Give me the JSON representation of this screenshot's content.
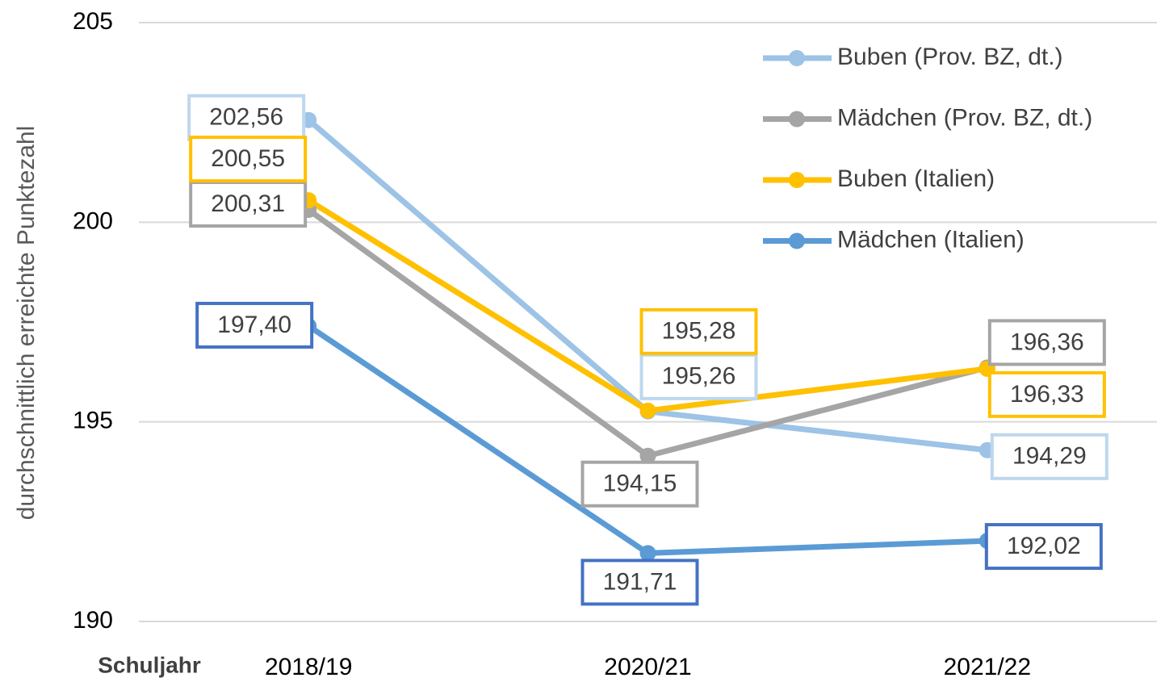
{
  "chart_data": {
    "type": "line",
    "y_label": "durchschnittlich erreichte Punktezahl",
    "x_label": "Schuljahr",
    "categories": [
      "2018/19",
      "2020/21",
      "2021/22"
    ],
    "series": [
      {
        "name": "Buben (Prov. BZ, dt.)",
        "color": "#9dc3e6",
        "label_border": "#bdd7ee",
        "values": [
          202.56,
          195.26,
          194.29
        ],
        "value_labels": [
          "202,56",
          "195,26",
          "194,29"
        ]
      },
      {
        "name": "Mädchen (Prov. BZ, dt.)",
        "color": "#a5a5a5",
        "label_border": "#a5a5a5",
        "values": [
          200.31,
          194.15,
          196.36
        ],
        "value_labels": [
          "200,31",
          "194,15",
          "196,36"
        ]
      },
      {
        "name": "Buben (Italien)",
        "color": "#ffc000",
        "label_border": "#ffc000",
        "values": [
          200.55,
          195.28,
          196.33
        ],
        "value_labels": [
          "200,55",
          "195,28",
          "196,33"
        ]
      },
      {
        "name": "Mädchen (Italien)",
        "color": "#5b9bd5",
        "label_border": "#4472c4",
        "values": [
          197.4,
          191.71,
          192.02
        ],
        "value_labels": [
          "197,40",
          "191,71",
          "192,02"
        ]
      }
    ],
    "ylim": [
      190,
      205
    ],
    "yticks": [
      190,
      195,
      200,
      205
    ],
    "grid": true,
    "legend": "top-right"
  }
}
